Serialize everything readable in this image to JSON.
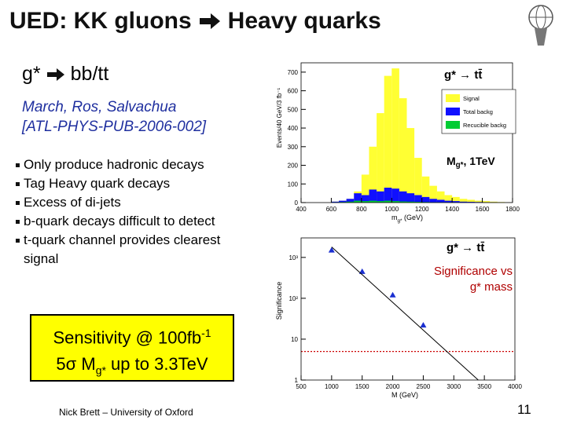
{
  "slide": {
    "title_left": "UED: KK gluons",
    "title_right": "Heavy quarks",
    "subtitle_left": "g*",
    "subtitle_right": "bb/tt",
    "reference": [
      "March, Ros, Salvachua",
      "[ATL-PHYS-PUB-2006-002]"
    ],
    "bullets": [
      "Only produce hadronic decays",
      "Tag Heavy quark decays",
      "Excess of di-jets",
      "b-quark decays difficult to detect",
      "t-quark channel provides clearest signal"
    ],
    "box": {
      "line1": "Sensitivity @ 100fb",
      "line1_sup": "-1",
      "line2": "5σ M",
      "line2_sub": "g*",
      "line2_rest": " up to 3.3TeV"
    },
    "footer": "Nick Brett – University of Oxford",
    "page_number": "11"
  },
  "chart_data": [
    {
      "type": "histogram",
      "title": "g* → tt̄",
      "ylabel": "Events/40 GeV/3 fb⁻¹",
      "xlabel": {
        "main": "m",
        "sub": "g*",
        "rest": " (GeV)"
      },
      "annotation": {
        "main": "M",
        "sub": "g*",
        "rest": ", 1TeV"
      },
      "bins": [
        400,
        450,
        500,
        550,
        600,
        650,
        700,
        750,
        800,
        850,
        900,
        950,
        1000,
        1050,
        1100,
        1150,
        1200,
        1250,
        1300,
        1350,
        1400,
        1450,
        1500,
        1550,
        1600,
        1650,
        1700,
        1750,
        1800
      ],
      "series": [
        {
          "name": "Signal",
          "color": "#ffff33",
          "values": [
            0,
            0,
            0,
            0,
            5,
            10,
            20,
            60,
            150,
            300,
            480,
            680,
            720,
            560,
            400,
            240,
            140,
            90,
            60,
            40,
            30,
            20,
            15,
            10,
            8,
            5,
            3,
            2
          ]
        },
        {
          "name": "Total backg",
          "color": "#1010ff",
          "values": [
            0,
            0,
            0,
            0,
            5,
            10,
            20,
            50,
            40,
            70,
            60,
            80,
            75,
            60,
            50,
            40,
            30,
            20,
            15,
            10,
            8,
            5,
            4,
            3,
            2,
            2,
            1,
            1
          ]
        },
        {
          "name": "Recucible backg",
          "color": "#00cc33",
          "values": [
            0,
            0,
            0,
            0,
            2,
            3,
            5,
            10,
            8,
            10,
            8,
            10,
            8,
            6,
            5,
            4,
            3,
            2,
            2,
            1,
            1,
            1,
            0,
            0,
            0,
            0,
            0,
            0
          ]
        }
      ],
      "xlim": [
        400,
        1800
      ],
      "xticks": [
        400,
        600,
        800,
        1000,
        1200,
        1400,
        1600,
        1800
      ],
      "ylim": [
        0,
        750
      ],
      "yticks": [
        0,
        100,
        200,
        300,
        400,
        500,
        600,
        700
      ]
    },
    {
      "type": "scatter",
      "title": "g* → tt̄",
      "annotation": [
        "Significance vs",
        "g* mass"
      ],
      "ylabel": "Significance",
      "xlabel": "M (GeV)",
      "log_y": true,
      "series": [
        {
          "color": "#1a2fd0",
          "marker": "triangle",
          "x": [
            1000,
            1500,
            2000,
            2500
          ],
          "values": [
            1500,
            450,
            120,
            22
          ]
        },
        {
          "color": "#000000",
          "marker": "line",
          "x": [
            1000,
            3400
          ],
          "values": [
            1800,
            1
          ]
        }
      ],
      "hline": 5,
      "hline_color": "#cc0000",
      "xlim": [
        500,
        4000
      ],
      "xticks": [
        500,
        1000,
        1500,
        2000,
        2500,
        3000,
        3500,
        4000
      ],
      "ylim": [
        1,
        3000
      ],
      "yticks": [
        1,
        10,
        {
          "value": 100,
          "label": "10²"
        },
        {
          "value": 1000,
          "label": "10³"
        }
      ]
    }
  ]
}
